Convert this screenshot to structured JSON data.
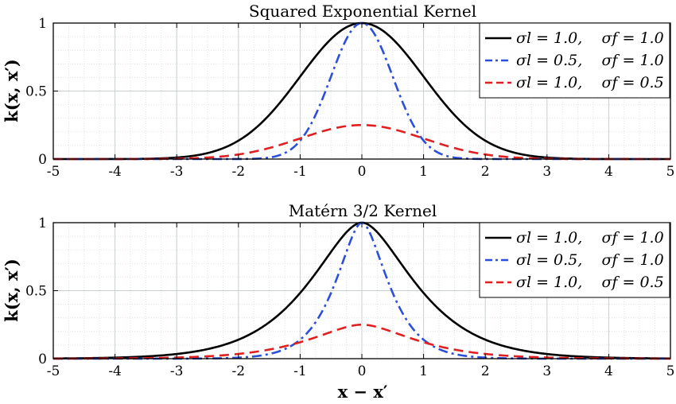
{
  "figure": {
    "xlabel": "x − x′",
    "ylabel": "k(x, x′)"
  },
  "chart_data": [
    {
      "type": "line",
      "title": "Squared Exponential Kernel",
      "kernel": "se",
      "xlim": [
        -5,
        5
      ],
      "ylim": [
        0,
        1
      ],
      "xticks": [
        "-5",
        "-4",
        "-3",
        "-2",
        "-1",
        "0",
        "1",
        "2",
        "3",
        "4",
        "5"
      ],
      "yticks": [
        "0",
        "0.5",
        "1"
      ],
      "grid": true,
      "legend_position": "top-right",
      "series": [
        {
          "name": "σl = 1.0,    σf = 1.0",
          "length_scale": 1.0,
          "signal_std": 1.0,
          "peak": 1.0,
          "color": "#000000",
          "dash": "solid"
        },
        {
          "name": "σl = 0.5,    σf = 1.0",
          "length_scale": 0.5,
          "signal_std": 1.0,
          "peak": 1.0,
          "color": "#2b4fd8",
          "dash": "dashdot"
        },
        {
          "name": "σl = 1.0,    σf = 0.5",
          "length_scale": 1.0,
          "signal_std": 0.5,
          "peak": 0.25,
          "color": "#e02020",
          "dash": "dashed"
        }
      ]
    },
    {
      "type": "line",
      "title": "Matérn 3/2 Kernel",
      "kernel": "matern32",
      "xlim": [
        -5,
        5
      ],
      "ylim": [
        0,
        1
      ],
      "xticks": [
        "-5",
        "-4",
        "-3",
        "-2",
        "-1",
        "0",
        "1",
        "2",
        "3",
        "4",
        "5"
      ],
      "yticks": [
        "0",
        "0.5",
        "1"
      ],
      "grid": true,
      "legend_position": "top-right",
      "series": [
        {
          "name": "σl = 1.0,    σf = 1.0",
          "length_scale": 1.0,
          "signal_std": 1.0,
          "peak": 1.0,
          "color": "#000000",
          "dash": "solid"
        },
        {
          "name": "σl = 0.5,    σf = 1.0",
          "length_scale": 0.5,
          "signal_std": 1.0,
          "peak": 1.0,
          "color": "#2b4fd8",
          "dash": "dashdot"
        },
        {
          "name": "σl = 1.0,    σf = 0.5",
          "length_scale": 1.0,
          "signal_std": 0.5,
          "peak": 0.25,
          "color": "#e02020",
          "dash": "dashed"
        }
      ]
    }
  ]
}
